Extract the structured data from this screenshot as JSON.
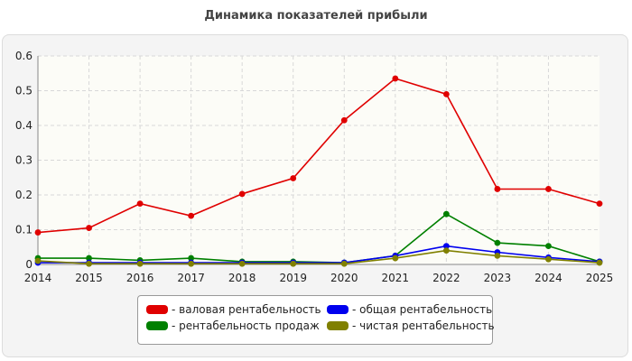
{
  "chart_data": {
    "type": "line",
    "title": "Динамика показателей прибыли",
    "x": [
      2014,
      2015,
      2016,
      2017,
      2018,
      2019,
      2020,
      2021,
      2022,
      2023,
      2024,
      2025
    ],
    "xticks": [
      "2014",
      "2015",
      "2016",
      "2017",
      "2018",
      "2019",
      "2020",
      "2021",
      "2022",
      "2023",
      "2024",
      "2025"
    ],
    "ylim": [
      0,
      0.6
    ],
    "yticks": [
      "0",
      "0.1",
      "0.2",
      "0.3",
      "0.4",
      "0.5",
      "0.6"
    ],
    "grid": true,
    "legend_position": "bottom",
    "series": [
      {
        "name": "- валовая рентабельность",
        "color": "#e00000",
        "values": [
          0.092,
          0.105,
          0.175,
          0.14,
          0.203,
          0.248,
          0.415,
          0.535,
          0.49,
          0.217,
          0.217,
          0.175
        ]
      },
      {
        "name": "- рентабельность продаж",
        "color": "#008000",
        "values": [
          0.018,
          0.018,
          0.012,
          0.018,
          0.008,
          0.008,
          0.005,
          0.025,
          0.145,
          0.062,
          0.053,
          0.008
        ]
      },
      {
        "name": "- общая рентабельность",
        "color": "#0000ee",
        "values": [
          0.005,
          0.005,
          0.005,
          0.005,
          0.005,
          0.005,
          0.005,
          0.025,
          0.053,
          0.035,
          0.02,
          0.008
        ]
      },
      {
        "name": "- чистая рентабельность",
        "color": "#808000",
        "values": [
          0.01,
          0.002,
          0.002,
          0.002,
          0.002,
          0.002,
          0.002,
          0.018,
          0.04,
          0.025,
          0.015,
          0.005
        ]
      }
    ]
  }
}
